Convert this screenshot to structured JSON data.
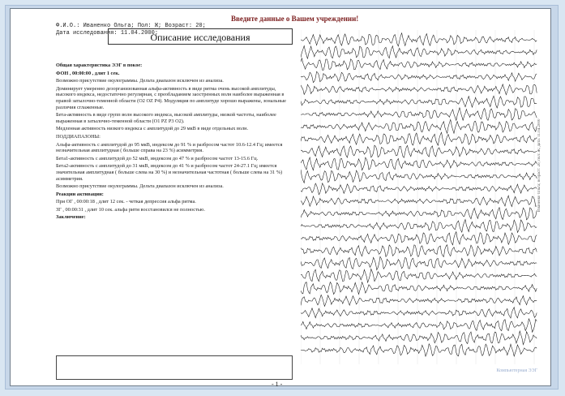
{
  "document": {
    "header": "Введите данные о Вашем учреждении!",
    "meta_line_1": "Ф.И.О.: Иваненко Ольга; Пол: Ж; Возраст: 20;",
    "meta_line_2": "Дата исследования: 11.04.2000;",
    "section_title": "Описание исследования",
    "page_number": "- 1 -",
    "vertical_label": "Иваненко Ольга; возраст: 20; пол: Ж; дата: 11.04.2000",
    "watermark": "Компьютерная ЭЭГ",
    "paragraphs": [
      {
        "text": "Общая характеристика ЭЭГ в покое:",
        "bold": true
      },
      {
        "text": "ФОН , 00:00:00 , длит 1 сек.",
        "bold": true
      },
      {
        "text": "Возможно присутствие окулограммы. Дельта диапазон исключен из анализа.",
        "bold": false
      },
      {
        "text": "Доминирует умеренно дезорганизованная альфа-активность в виде ритма очень высокой амплитуды, высокого индекса, недостаточно регулярная, с преобладанием заостренных волн наиболее выраженная в правой затылочно-теменной области (O2 OZ P4). Модуляция по амплитуде хорошо выражены, зональные различия сглаженные.",
        "bold": false
      },
      {
        "text": "Бета-активность в виде групп волн высокого индекса, высокой амплитуды, низкой частоты, наиболее выраженная в затылочно-теменной области (O1 PZ P3 O2).",
        "bold": false
      },
      {
        "text": "Медленная активность низкого индекса с амплитудой до 29 мкВ в виде отдельных волн.",
        "bold": false
      },
      {
        "text": "ПОДДИАПАЗОНЫ:",
        "bold": false
      },
      {
        "text": "Альфа-активность с амплитудой до 95 мкВ, индексом до 91 % и разбросом частот 10.6-12.4 Гц; имеется незначительная амплитудная ( больше справа на 23 %) асимметрия.",
        "bold": false
      },
      {
        "text": "Бета1-активность с амплитудой до 52 мкВ, индексом до 47 % и разбросом частот 13-15.6 Гц.",
        "bold": false
      },
      {
        "text": "Бета2-активность с амплитудой до 31 мкВ, индексом до 41 % и разбросом частот 24-27.1 Гц; имеется значительная амплитудная ( больше слева на 30 %) и незначительная частотная ( больше слева на 31 %) асимметрия.",
        "bold": false
      },
      {
        "text": "Возможно присутствие окулограммы. Дельта диапазон исключен из анализа.",
        "bold": false
      },
      {
        "text": "Реакции активации:",
        "bold": true
      },
      {
        "text": "При ОГ , 00:00:18 , длит 12 сек. - четкая депрессия альфа ритма.",
        "bold": false
      },
      {
        "text": "ЗГ , 00:00:31 , длит 10 сек. альфа ритм восстановился не полностью.",
        "bold": false
      },
      {
        "text": "Заключение:",
        "bold": true
      }
    ]
  }
}
